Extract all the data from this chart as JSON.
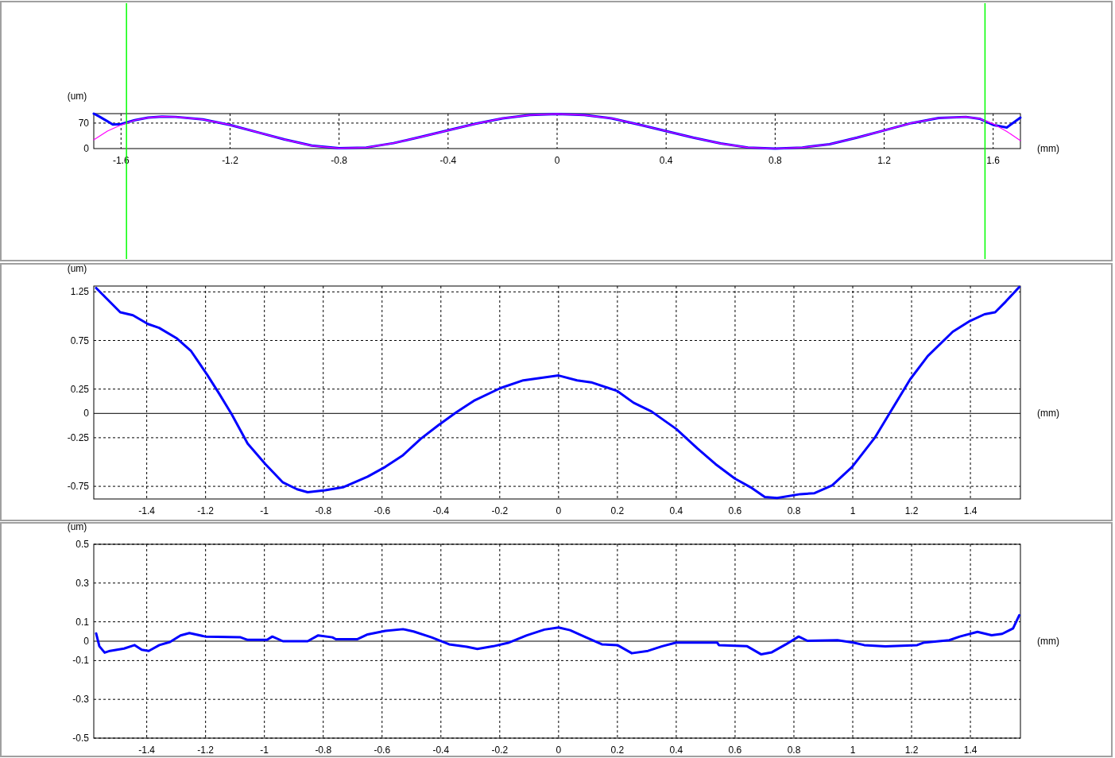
{
  "chart_data": [
    {
      "type": "line",
      "xlabel": "(mm)",
      "ylabel": "(um)",
      "xlim": [
        -1.7,
        1.7
      ],
      "ylim": [
        0,
        96
      ],
      "xticks": [
        -1.6,
        -1.2,
        -0.8,
        -0.4,
        0,
        0.4,
        0.8,
        1.2,
        1.6
      ],
      "yticks": [
        0,
        70
      ],
      "grid": true,
      "ref_lines": [
        {
          "axis": "x",
          "value": -1.58,
          "color": "#00ff00"
        },
        {
          "axis": "x",
          "value": 1.57,
          "color": "#00ff00"
        }
      ],
      "series": [
        {
          "color": "#0000ff",
          "x": [
            -1.7,
            -1.68,
            -1.65,
            -1.63,
            -1.6,
            -1.55,
            -1.5,
            -1.45,
            -1.4,
            -1.3,
            -1.2,
            -1.1,
            -1.0,
            -0.9,
            -0.8,
            -0.7,
            -0.6,
            -0.5,
            -0.4,
            -0.3,
            -0.2,
            -0.1,
            0,
            0.1,
            0.2,
            0.3,
            0.4,
            0.5,
            0.6,
            0.7,
            0.8,
            0.9,
            1.0,
            1.1,
            1.2,
            1.3,
            1.4,
            1.5,
            1.55,
            1.6,
            1.65,
            1.7
          ],
          "values": [
            96,
            88,
            75,
            66,
            67,
            78,
            85,
            88,
            87,
            80,
            65,
            45,
            25,
            8,
            1,
            3,
            15,
            32,
            50,
            68,
            83,
            92,
            95,
            92,
            83,
            66,
            48,
            30,
            14,
            3,
            0,
            3,
            12,
            30,
            50,
            70,
            84,
            87,
            82,
            65,
            58,
            85
          ]
        },
        {
          "color": "#ff00ff",
          "x": [
            -1.7,
            -1.65,
            -1.6,
            -1.55,
            -1.5,
            -1.45,
            -1.4,
            -1.3,
            -1.2,
            -1.1,
            -1.0,
            -0.9,
            -0.8,
            -0.7,
            -0.6,
            -0.5,
            -0.4,
            -0.3,
            -0.2,
            -0.1,
            0,
            0.1,
            0.2,
            0.3,
            0.4,
            0.5,
            0.6,
            0.7,
            0.8,
            0.9,
            1.0,
            1.1,
            1.2,
            1.3,
            1.4,
            1.5,
            1.55,
            1.6,
            1.65,
            1.7
          ],
          "values": [
            24,
            48,
            65,
            78,
            85,
            88,
            87,
            80,
            65,
            45,
            25,
            8,
            1,
            3,
            15,
            32,
            50,
            68,
            83,
            92,
            95,
            92,
            83,
            66,
            48,
            30,
            14,
            3,
            0,
            3,
            12,
            30,
            50,
            70,
            84,
            87,
            82,
            68,
            47,
            22
          ]
        }
      ]
    },
    {
      "type": "line",
      "xlabel": "(mm)",
      "ylabel": "(um)",
      "xlim": [
        -1.58,
        1.57
      ],
      "ylim": [
        -0.88,
        1.31
      ],
      "xticks": [
        -1.4,
        -1.2,
        -1,
        -0.8,
        -0.6,
        -0.4,
        -0.2,
        0,
        0.2,
        0.4,
        0.6,
        0.8,
        1,
        1.2,
        1.4
      ],
      "yticks": [
        -0.75,
        -0.25,
        0,
        0.25,
        0.75,
        1.25
      ],
      "grid": true,
      "series": [
        {
          "color": "#0000ff",
          "x": [
            -1.572,
            -1.49,
            -1.447,
            -1.396,
            -1.358,
            -1.297,
            -1.249,
            -1.195,
            -1.153,
            -1.111,
            -1.057,
            -0.997,
            -0.937,
            -0.889,
            -0.853,
            -0.793,
            -0.733,
            -0.649,
            -0.589,
            -0.529,
            -0.468,
            -0.408,
            -0.348,
            -0.288,
            -0.198,
            -0.12,
            0,
            0.063,
            0.111,
            0.2,
            0.255,
            0.316,
            0.4,
            0.472,
            0.533,
            0.599,
            0.653,
            0.701,
            0.743,
            0.822,
            0.87,
            0.93,
            0.998,
            1.075,
            1.123,
            1.195,
            1.255,
            1.34,
            1.398,
            1.448,
            1.484,
            1.52,
            1.566
          ],
          "values": [
            1.29,
            1.04,
            1.01,
            0.92,
            0.88,
            0.77,
            0.64,
            0.4,
            0.2,
            -0.01,
            -0.31,
            -0.52,
            -0.71,
            -0.78,
            -0.81,
            -0.79,
            -0.76,
            -0.65,
            -0.55,
            -0.43,
            -0.26,
            -0.12,
            0.01,
            0.13,
            0.26,
            0.34,
            0.39,
            0.34,
            0.32,
            0.23,
            0.11,
            0.02,
            -0.16,
            -0.36,
            -0.52,
            -0.67,
            -0.76,
            -0.86,
            -0.87,
            -0.83,
            -0.82,
            -0.74,
            -0.55,
            -0.25,
            -0.01,
            0.35,
            0.59,
            0.84,
            0.95,
            1.02,
            1.04,
            1.15,
            1.3
          ]
        }
      ]
    },
    {
      "type": "line",
      "xlabel": "(mm)",
      "ylabel": "(um)",
      "xlim": [
        -1.58,
        1.57
      ],
      "ylim": [
        -0.5,
        0.5
      ],
      "xticks": [
        -1.4,
        -1.2,
        -1,
        -0.8,
        -0.6,
        -0.4,
        -0.2,
        0,
        0.2,
        0.4,
        0.6,
        0.8,
        1,
        1.2,
        1.4
      ],
      "yticks": [
        -0.5,
        -0.3,
        -0.1,
        0,
        0.1,
        0.3,
        0.5
      ],
      "grid": true,
      "series": [
        {
          "color": "#0000ff",
          "x": [
            -1.572,
            -1.561,
            -1.543,
            -1.525,
            -1.477,
            -1.441,
            -1.417,
            -1.393,
            -1.357,
            -1.321,
            -1.285,
            -1.255,
            -1.201,
            -1.081,
            -1.057,
            -0.991,
            -0.973,
            -0.937,
            -0.853,
            -0.817,
            -0.769,
            -0.757,
            -0.685,
            -0.649,
            -0.589,
            -0.529,
            -0.493,
            -0.432,
            -0.372,
            -0.312,
            -0.276,
            -0.222,
            -0.168,
            -0.108,
            -0.048,
            0,
            0.039,
            0.087,
            0.147,
            0.2,
            0.249,
            0.304,
            0.352,
            0.4,
            0.539,
            0.545,
            0.641,
            0.689,
            0.725,
            0.773,
            0.816,
            0.846,
            0.948,
            1.002,
            1.039,
            1.111,
            1.219,
            1.243,
            1.328,
            1.364,
            1.424,
            1.472,
            1.508,
            1.545,
            1.566
          ],
          "values": [
            0.04,
            -0.026,
            -0.059,
            -0.05,
            -0.038,
            -0.02,
            -0.044,
            -0.05,
            -0.02,
            -0.004,
            0.03,
            0.042,
            0.024,
            0.02,
            0.007,
            0.007,
            0.024,
            0,
            0,
            0.03,
            0.02,
            0.01,
            0.01,
            0.035,
            0.053,
            0.062,
            0.05,
            0.02,
            -0.016,
            -0.029,
            -0.04,
            -0.026,
            -0.007,
            0.03,
            0.06,
            0.071,
            0.057,
            0.024,
            -0.016,
            -0.02,
            -0.062,
            -0.05,
            -0.026,
            -0.007,
            -0.007,
            -0.02,
            -0.026,
            -0.068,
            -0.057,
            -0.016,
            0.024,
            0.002,
            0.005,
            -0.007,
            -0.02,
            -0.027,
            -0.02,
            -0.007,
            0.005,
            0.024,
            0.048,
            0.031,
            0.038,
            0.066,
            0.134
          ]
        }
      ]
    }
  ]
}
